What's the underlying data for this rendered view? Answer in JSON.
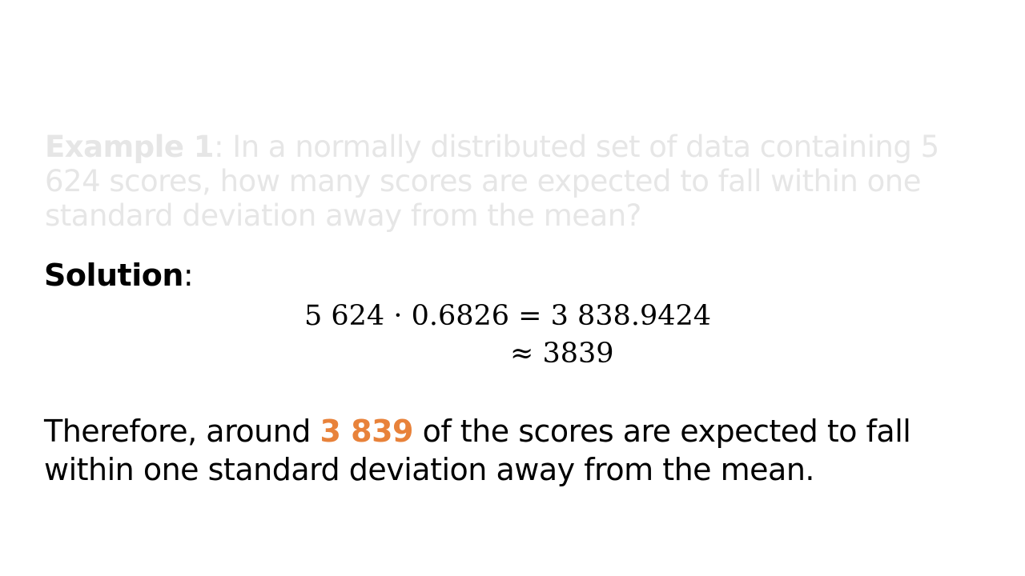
{
  "example": {
    "label": "Example 1",
    "text": ": In a normally distributed set of data containing 5 624 scores, how many scores are expected to fall within one standard deviation away from the mean?"
  },
  "solution": {
    "label": "Solution",
    "suffix": ":"
  },
  "math": {
    "line1": "5 624 · 0.6826 = 3 838.9424",
    "line2": "≈ 3839"
  },
  "conclusion": {
    "before": "Therefore, around ",
    "highlight": "3 839",
    "after": " of the scores are expected to fall within one standard deviation away from the mean."
  },
  "colors": {
    "highlight": "#e8823a",
    "faded_text": "#e6e6e6"
  }
}
